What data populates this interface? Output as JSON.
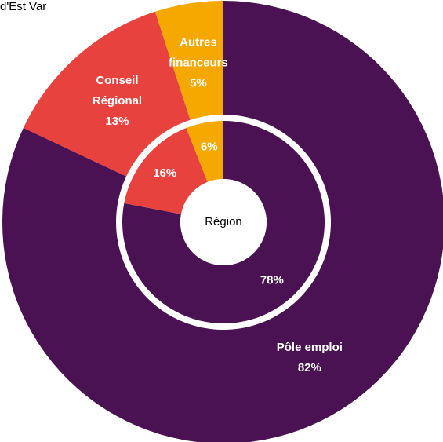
{
  "chart_data": {
    "type": "donut",
    "title": "d'Est Var",
    "center_label": "Région",
    "categories": [
      "Pôle emploi",
      "Conseil Régional",
      "Autres financeurs"
    ],
    "colors": [
      "#4a1252",
      "#e8423f",
      "#f5a800"
    ],
    "rings": [
      {
        "values": [
          82,
          13,
          5
        ],
        "value_labels": [
          "82%",
          "13%",
          "5%"
        ]
      },
      {
        "values": [
          78,
          16,
          6
        ],
        "value_labels": [
          "78%",
          "16%",
          "6%"
        ]
      }
    ]
  }
}
